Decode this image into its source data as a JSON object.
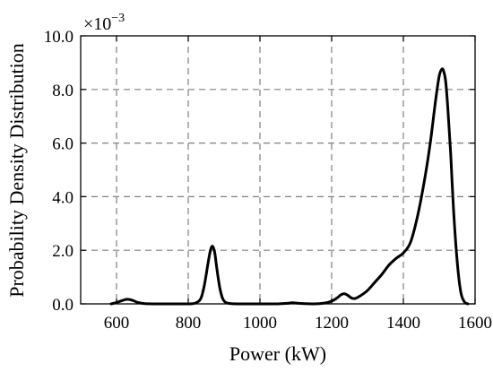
{
  "chart_data": {
    "type": "line",
    "xlabel": "Power (kW)",
    "ylabel": "Probability Density Distribution",
    "y_multiplier": "×10",
    "y_multiplier_exp": "−3",
    "xlim": [
      500,
      1600
    ],
    "ylim": [
      0,
      10
    ],
    "xticks": [
      {
        "value": 600,
        "label": "600"
      },
      {
        "value": 800,
        "label": "800"
      },
      {
        "value": 1000,
        "label": "1000"
      },
      {
        "value": 1200,
        "label": "1200"
      },
      {
        "value": 1400,
        "label": "1400"
      },
      {
        "value": 1600,
        "label": "1600"
      }
    ],
    "yticks": [
      {
        "value": 0,
        "label": "0.0"
      },
      {
        "value": 2,
        "label": "2.0"
      },
      {
        "value": 4,
        "label": "4.0"
      },
      {
        "value": 6,
        "label": "6.0"
      },
      {
        "value": 8,
        "label": "8.0"
      },
      {
        "value": 10,
        "label": "10.0"
      }
    ],
    "grid": true,
    "line_color": "#000000",
    "grid_color": "#808080",
    "series": [
      {
        "x": [
          585,
          600,
          615,
          630,
          645,
          660,
          680,
          720,
          760,
          800,
          820,
          835,
          845,
          855,
          862,
          868,
          874,
          880,
          888,
          896,
          905,
          920,
          950,
          1000,
          1050,
          1075,
          1090,
          1110,
          1150,
          1180,
          1200,
          1215,
          1225,
          1235,
          1245,
          1255,
          1265,
          1280,
          1300,
          1320,
          1340,
          1360,
          1380,
          1400,
          1420,
          1440,
          1460,
          1475,
          1490,
          1500,
          1507,
          1512,
          1518,
          1524,
          1532,
          1540,
          1550,
          1560,
          1570,
          1580
        ],
        "y": [
          0.0,
          0.05,
          0.12,
          0.17,
          0.13,
          0.05,
          0.01,
          0.0,
          0.0,
          0.0,
          0.03,
          0.2,
          0.7,
          1.5,
          2.0,
          2.15,
          1.9,
          1.3,
          0.6,
          0.2,
          0.05,
          0.01,
          0.0,
          0.0,
          0.0,
          0.02,
          0.04,
          0.02,
          0.0,
          0.03,
          0.1,
          0.22,
          0.33,
          0.38,
          0.32,
          0.22,
          0.2,
          0.3,
          0.5,
          0.8,
          1.1,
          1.45,
          1.7,
          1.9,
          2.3,
          3.3,
          4.7,
          6.0,
          7.6,
          8.5,
          8.75,
          8.7,
          8.3,
          7.3,
          5.6,
          3.5,
          1.6,
          0.45,
          0.08,
          0.0
        ]
      }
    ]
  }
}
